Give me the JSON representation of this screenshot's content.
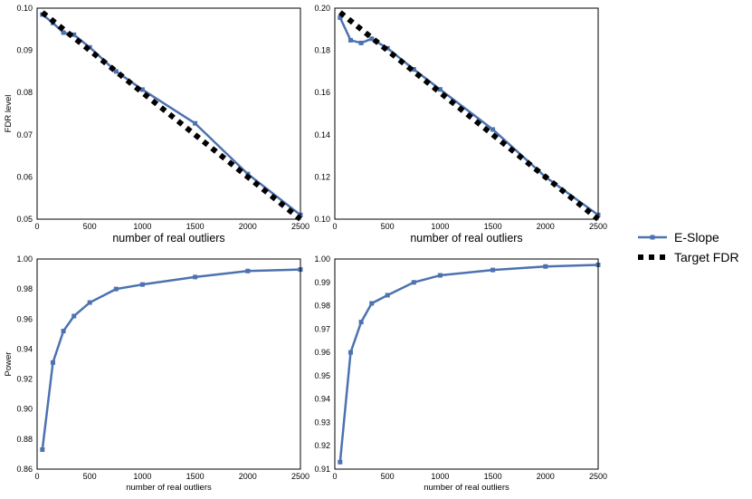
{
  "colors": {
    "eslope": "#4c72b0",
    "target": "#000000",
    "frame": "#000000"
  },
  "legend": {
    "eslope_label": "E-Slope",
    "target_label": "Target FDR",
    "placement": "right"
  },
  "chart_data": [
    {
      "type": "line",
      "xlabel": "number of real outliers",
      "ylabel": "FDR level",
      "xlim": [
        0,
        2500
      ],
      "ylim": [
        0.05,
        0.1
      ],
      "xticks": [
        "0",
        "500",
        "1000",
        "1500",
        "2000",
        "2500"
      ],
      "yticks": [
        "0.05",
        "0.06",
        "0.07",
        "0.08",
        "0.09",
        "0.10"
      ],
      "x": [
        50,
        150,
        250,
        350,
        500,
        750,
        1000,
        1500,
        2000,
        2500
      ],
      "series": [
        {
          "name": "E-Slope",
          "values": [
            0.0985,
            0.0965,
            0.0942,
            0.0937,
            0.0907,
            0.085,
            0.0807,
            0.0727,
            0.0607,
            0.051
          ]
        },
        {
          "name": "Target FDR",
          "values": [
            0.099,
            0.097,
            0.095,
            0.093,
            0.09,
            0.085,
            0.08,
            0.07,
            0.06,
            0.05
          ]
        }
      ]
    },
    {
      "type": "line",
      "xlabel": "number of real outliers",
      "ylabel": "",
      "xlim": [
        0,
        2500
      ],
      "ylim": [
        0.1,
        0.2
      ],
      "xticks": [
        "0",
        "500",
        "1000",
        "1500",
        "2000",
        "2500"
      ],
      "yticks": [
        "0.10",
        "0.12",
        "0.14",
        "0.16",
        "0.18",
        "0.20"
      ],
      "x": [
        50,
        150,
        250,
        350,
        500,
        750,
        1000,
        1500,
        2000,
        2500
      ],
      "series": [
        {
          "name": "E-Slope",
          "values": [
            0.1955,
            0.1848,
            0.1835,
            0.1855,
            0.181,
            0.171,
            0.1615,
            0.1425,
            0.12,
            0.102
          ]
        },
        {
          "name": "Target FDR",
          "values": [
            0.198,
            0.194,
            0.19,
            0.186,
            0.18,
            0.17,
            0.16,
            0.14,
            0.12,
            0.1
          ]
        }
      ]
    },
    {
      "type": "line",
      "xlabel": "number of real outliers",
      "ylabel": "Power",
      "xlim": [
        0,
        2500
      ],
      "ylim": [
        0.86,
        1.0
      ],
      "xticks": [
        "0",
        "500",
        "1000",
        "1500",
        "2000",
        "2500"
      ],
      "yticks": [
        "0.86",
        "0.88",
        "0.90",
        "0.92",
        "0.94",
        "0.96",
        "0.98",
        "1.00"
      ],
      "x": [
        50,
        150,
        250,
        350,
        500,
        750,
        1000,
        1500,
        2000,
        2500
      ],
      "series": [
        {
          "name": "E-Slope",
          "values": [
            0.873,
            0.931,
            0.952,
            0.962,
            0.971,
            0.98,
            0.983,
            0.988,
            0.992,
            0.993
          ]
        }
      ]
    },
    {
      "type": "line",
      "xlabel": "number of real outliers",
      "ylabel": "",
      "xlim": [
        0,
        2500
      ],
      "ylim": [
        0.91,
        1.0
      ],
      "xticks": [
        "0",
        "500",
        "1000",
        "1500",
        "2000",
        "2500"
      ],
      "yticks": [
        "0.91",
        "0.92",
        "0.93",
        "0.94",
        "0.95",
        "0.96",
        "0.97",
        "0.98",
        "0.99",
        "1.00"
      ],
      "x": [
        50,
        150,
        250,
        350,
        500,
        750,
        1000,
        1500,
        2000,
        2500
      ],
      "series": [
        {
          "name": "E-Slope",
          "values": [
            0.913,
            0.96,
            0.973,
            0.981,
            0.9845,
            0.99,
            0.993,
            0.9953,
            0.9968,
            0.9975
          ]
        }
      ]
    }
  ]
}
